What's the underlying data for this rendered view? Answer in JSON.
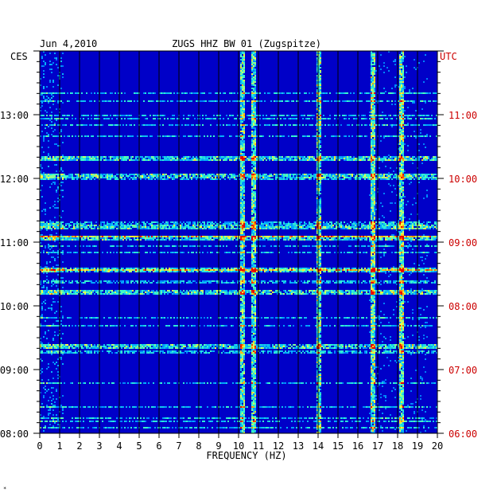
{
  "chart_data": {
    "type": "heatmap",
    "title": "ZUGS HHZ BW 01 (Zugspitze)",
    "date": "Jun 4,2010",
    "xlabel": "FREQUENCY (HZ)",
    "x_ticks": [
      "0",
      "1",
      "2",
      "3",
      "4",
      "5",
      "6",
      "7",
      "8",
      "9",
      "10",
      "11",
      "12",
      "13",
      "14",
      "15",
      "16",
      "17",
      "18",
      "19",
      "20"
    ],
    "xlim": [
      0,
      20
    ],
    "left_axis": {
      "label": "CES",
      "ticks": [
        "13:00",
        "12:00",
        "11:00",
        "10:00",
        "09:00",
        "08:00"
      ],
      "range": [
        "08:00",
        "14:00"
      ]
    },
    "right_axis": {
      "label": "UTC",
      "ticks": [
        "11:00",
        "10:00",
        "09:00",
        "08:00",
        "07:00",
        "06:00"
      ],
      "range": [
        "06:00",
        "12:00"
      ]
    },
    "colors": {
      "background": "#0000c8",
      "axis_text": "#000000",
      "utc_text": "#cc0000",
      "frame": "#000000"
    },
    "persistent_lines_hz": [
      10.2,
      10.7,
      14.0,
      16.7,
      18.2
    ],
    "strong_rows_ces": [
      "12:20",
      "12:03",
      "11:15",
      "11:04",
      "10:35",
      "10:14",
      "09:23"
    ],
    "corner_mark": "*"
  }
}
